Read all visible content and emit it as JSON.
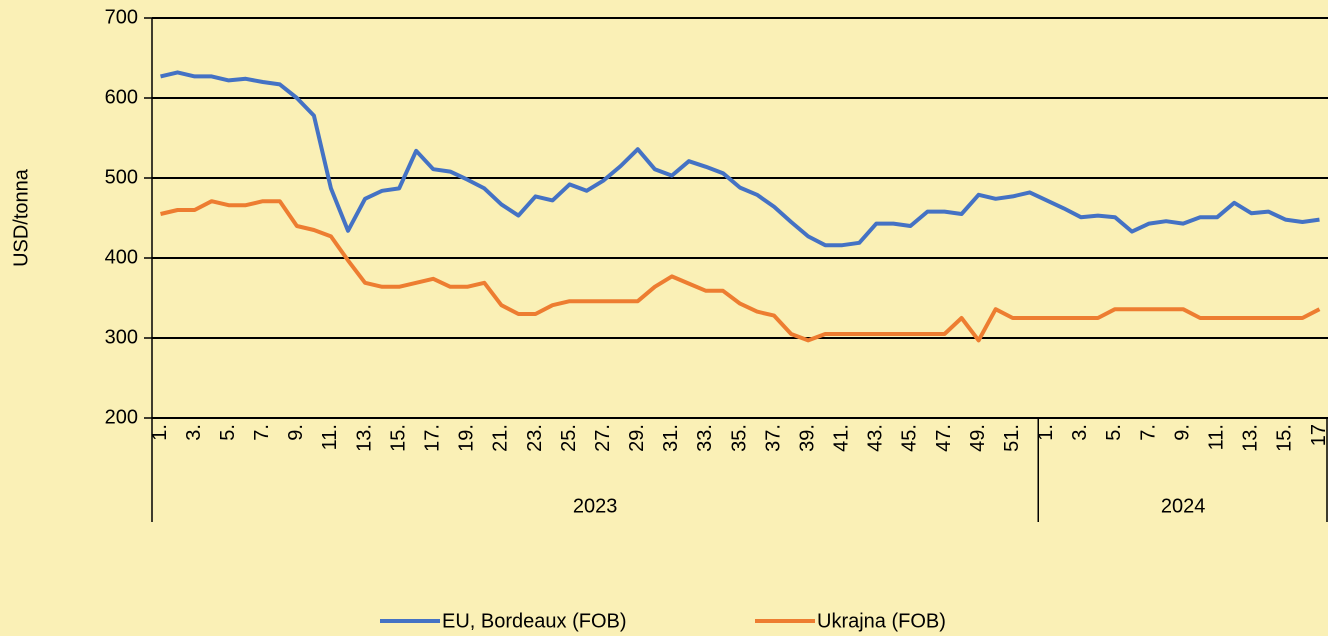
{
  "chart_data": {
    "type": "line",
    "y_label": "USD/tonna",
    "categories": [
      "1.",
      null,
      "3.",
      null,
      "5.",
      null,
      "7.",
      null,
      "9.",
      null,
      "11.",
      null,
      "13.",
      null,
      "15.",
      null,
      "17.",
      null,
      "19.",
      null,
      "21.",
      null,
      "23.",
      null,
      "25.",
      null,
      "27.",
      null,
      "29.",
      null,
      "31.",
      null,
      "33.",
      null,
      "35.",
      null,
      "37.",
      null,
      "39.",
      null,
      "41.",
      null,
      "43.",
      null,
      "45.",
      null,
      "47.",
      null,
      "49.",
      null,
      "51.",
      null,
      "1.",
      null,
      "3.",
      null,
      "5.",
      null,
      "7.",
      null,
      "9.",
      null,
      "11.",
      null,
      "13.",
      null,
      "15.",
      null,
      "17"
    ],
    "groups": [
      {
        "name": "2023",
        "size": 52
      },
      {
        "name": "2024",
        "size": 17
      }
    ],
    "series": [
      {
        "name": "EU, Bordeaux (FOB)",
        "color": "#4472c4",
        "values": [
          627,
          632,
          627,
          627,
          622,
          624,
          620,
          617,
          600,
          578,
          487,
          434,
          474,
          484,
          487,
          534,
          511,
          508,
          498,
          487,
          467,
          453,
          477,
          472,
          492,
          484,
          497,
          515,
          536,
          511,
          503,
          521,
          514,
          506,
          488,
          479,
          464,
          445,
          427,
          416,
          416,
          419,
          443,
          443,
          440,
          458,
          458,
          455,
          479,
          474,
          477,
          482,
          472,
          462,
          451,
          453,
          451,
          433,
          443,
          446,
          443,
          451,
          451,
          469,
          456,
          458,
          448,
          445,
          448
        ]
      },
      {
        "name": "Ukrajna (FOB)",
        "color": "#ed7d31",
        "values": [
          455,
          460,
          460,
          471,
          466,
          466,
          471,
          471,
          440,
          435,
          427,
          397,
          369,
          364,
          364,
          369,
          374,
          364,
          364,
          369,
          341,
          330,
          330,
          341,
          346,
          346,
          346,
          346,
          346,
          364,
          377,
          368,
          359,
          359,
          343,
          333,
          328,
          305,
          297,
          305,
          305,
          305,
          305,
          305,
          305,
          305,
          305,
          325,
          297,
          336,
          325,
          325,
          325,
          325,
          325,
          325,
          336,
          336,
          336,
          336,
          336,
          325,
          325,
          325,
          325,
          325,
          325,
          325,
          336
        ]
      }
    ],
    "ylim": [
      200,
      700
    ],
    "yticks": [
      200,
      300,
      400,
      500,
      600,
      700
    ],
    "grid": true,
    "legend": "bottom"
  }
}
